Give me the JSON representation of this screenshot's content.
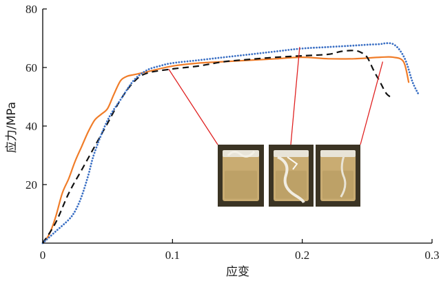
{
  "chart_data": {
    "type": "line",
    "xlabel": "应变",
    "ylabel": "应力/MPa",
    "xlim": [
      0,
      0.3
    ],
    "ylim": [
      0,
      80
    ],
    "xticks": [
      0,
      0.1,
      0.2,
      0.3
    ],
    "xtick_labels": [
      "0",
      "0.1",
      "0.2",
      "0.3"
    ],
    "yticks": [
      20,
      40,
      60,
      80
    ],
    "ytick_labels": [
      "20",
      "40",
      "60",
      "80"
    ],
    "grid": false,
    "series": [
      {
        "style": "solid",
        "color": "#f07c28",
        "x": [
          0.0,
          0.005,
          0.01,
          0.015,
          0.02,
          0.025,
          0.03,
          0.035,
          0.04,
          0.045,
          0.05,
          0.055,
          0.06,
          0.065,
          0.07,
          0.075,
          0.08,
          0.1,
          0.12,
          0.14,
          0.16,
          0.18,
          0.2,
          0.22,
          0.24,
          0.26,
          0.27,
          0.278,
          0.282
        ],
        "y": [
          0,
          3,
          9,
          17,
          22,
          28,
          33,
          38,
          42,
          44,
          46,
          51,
          55.5,
          57,
          57.5,
          58,
          58.5,
          60.5,
          61.5,
          62,
          62.5,
          63,
          63.5,
          63,
          63,
          63.5,
          63.5,
          62,
          55
        ]
      },
      {
        "style": "dashed",
        "color": "#111111",
        "x": [
          0.0,
          0.01,
          0.02,
          0.03,
          0.04,
          0.05,
          0.06,
          0.07,
          0.08,
          0.1,
          0.12,
          0.14,
          0.16,
          0.18,
          0.2,
          0.22,
          0.23,
          0.24,
          0.245,
          0.25,
          0.255,
          0.26,
          0.265,
          0.27
        ],
        "y": [
          0,
          7,
          17,
          25,
          33,
          41,
          49,
          55,
          58,
          59.5,
          60.5,
          62,
          62.8,
          63.5,
          64,
          64.5,
          65.5,
          65.8,
          65.2,
          63.5,
          59,
          55,
          51,
          49.5
        ]
      },
      {
        "style": "dotted",
        "color": "#3a6fc4",
        "x": [
          0.0,
          0.01,
          0.02,
          0.025,
          0.03,
          0.035,
          0.04,
          0.05,
          0.06,
          0.07,
          0.08,
          0.09,
          0.1,
          0.12,
          0.14,
          0.16,
          0.18,
          0.2,
          0.22,
          0.24,
          0.25,
          0.26,
          0.265,
          0.27,
          0.275,
          0.28,
          0.285,
          0.29
        ],
        "y": [
          0,
          4,
          8,
          11,
          16,
          23,
          31,
          42,
          49,
          55.5,
          59,
          60.5,
          61.5,
          62.5,
          63.5,
          64.5,
          65.5,
          66.5,
          67,
          67.5,
          67.8,
          68,
          68.3,
          68,
          66,
          62,
          55,
          50.5
        ]
      }
    ],
    "annotations": [
      {
        "type": "photo-inset",
        "name": "specimen-photo-1",
        "point": {
          "x": 0.097,
          "y": 59.5
        }
      },
      {
        "type": "photo-inset",
        "name": "specimen-photo-2",
        "point": {
          "x": 0.198,
          "y": 67
        }
      },
      {
        "type": "photo-inset",
        "name": "specimen-photo-3",
        "point": {
          "x": 0.262,
          "y": 62
        }
      }
    ]
  },
  "colors": {
    "axis": "#000000",
    "orange": "#f07c28",
    "black": "#111111",
    "blue": "#3a6fc4",
    "leader": "#e02020",
    "photo_bg": "#3b3424"
  }
}
